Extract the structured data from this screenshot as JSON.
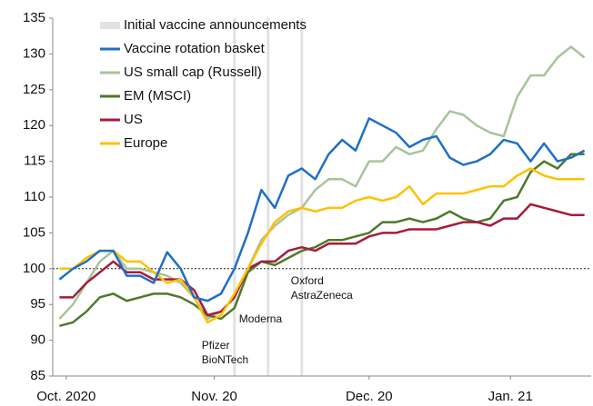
{
  "chart_data": {
    "type": "line",
    "x": [
      1,
      3,
      5,
      7,
      9,
      11,
      13,
      15,
      17,
      19,
      21,
      23,
      25,
      27,
      29,
      31,
      33,
      35,
      37,
      39,
      41,
      43,
      45,
      47,
      49,
      51,
      53,
      55,
      57,
      59,
      61,
      63,
      65,
      67,
      69,
      71,
      73,
      75,
      77,
      79
    ],
    "series": [
      {
        "name": "Vaccine rotation basket",
        "color": "#1f6fc5",
        "values": [
          98.5,
          100,
          101,
          102.5,
          102.5,
          99,
          99,
          98,
          102.3,
          100,
          96,
          95.5,
          96.5,
          100,
          105,
          111,
          108.5,
          113,
          114,
          112.5,
          116,
          118,
          116.5,
          121,
          120,
          119,
          117,
          118,
          118.5,
          115.5,
          114.5,
          115,
          116,
          118,
          117.5,
          115,
          117.5,
          115,
          115.5,
          116.5
        ]
      },
      {
        "name": "US small cap (Russell)",
        "color": "#a8c49a",
        "values": [
          93,
          95,
          98,
          101,
          102.5,
          100,
          100,
          99.5,
          99,
          98,
          96,
          93,
          94,
          96,
          100,
          104,
          106,
          107.5,
          108.5,
          111,
          112.5,
          112.5,
          111.5,
          115,
          115,
          117,
          116,
          116.5,
          119.5,
          122,
          121.5,
          120,
          119,
          118.5,
          124,
          127,
          127,
          129.5,
          131,
          129.5
        ]
      },
      {
        "name": "EM (MSCI)",
        "color": "#4e7a2a",
        "values": [
          92,
          92.5,
          94,
          96,
          96.5,
          95.5,
          96,
          96.5,
          96.5,
          96,
          95,
          93.5,
          93,
          94.5,
          99.5,
          101,
          100.5,
          101.5,
          102.5,
          103,
          104,
          104,
          104.5,
          105,
          106.5,
          106.5,
          107,
          106.5,
          107,
          108,
          107,
          106.5,
          107,
          109.5,
          110,
          113.5,
          115,
          114,
          116,
          116
        ]
      },
      {
        "name": "US",
        "color": "#a31d3c",
        "values": [
          96,
          96,
          98,
          99.5,
          101,
          99.5,
          99.5,
          98.5,
          98.5,
          98.5,
          97,
          93.5,
          94,
          96,
          100,
          101,
          101,
          102.5,
          103,
          102.5,
          103.5,
          103.5,
          103.5,
          104.5,
          105,
          105,
          105.5,
          105.5,
          105.5,
          106,
          106.5,
          106.5,
          106,
          107,
          107,
          109,
          108.5,
          108,
          107.5,
          107.5
        ]
      },
      {
        "name": "Europe",
        "color": "#ffc000",
        "values": [
          100,
          100,
          101.5,
          102.5,
          102.5,
          101,
          101,
          99.5,
          98,
          98.5,
          96,
          92.5,
          93.5,
          96.5,
          100,
          103.5,
          106.5,
          108,
          108.5,
          108,
          108.5,
          108.5,
          109.5,
          110,
          109.5,
          110,
          111.5,
          109,
          110.5,
          110.5,
          110.5,
          111,
          111.5,
          111.5,
          113,
          114,
          113,
          112.5,
          112.5,
          112.5
        ]
      }
    ],
    "xlim": [
      0,
      80
    ],
    "xticks": [
      {
        "value": 2,
        "label": "Oct. 2020"
      },
      {
        "value": 24,
        "label": "Nov. 20"
      },
      {
        "value": 47,
        "label": "Dec. 20"
      },
      {
        "value": 68,
        "label": "Jan. 21"
      }
    ],
    "ylim": [
      85,
      135
    ],
    "yticks": [
      85,
      90,
      95,
      100,
      105,
      110,
      115,
      120,
      125,
      130,
      135
    ],
    "reference_line": 100,
    "vlines": {
      "name": "Initial vaccine announcements",
      "color": "#e2e2e2",
      "x": [
        27,
        32,
        37
      ]
    },
    "annotations": [
      [
        "Pfizer",
        "BioNTech"
      ],
      [
        "Moderna"
      ],
      [
        "Oxford",
        "AstraZeneca"
      ]
    ],
    "legend": "upper left"
  }
}
